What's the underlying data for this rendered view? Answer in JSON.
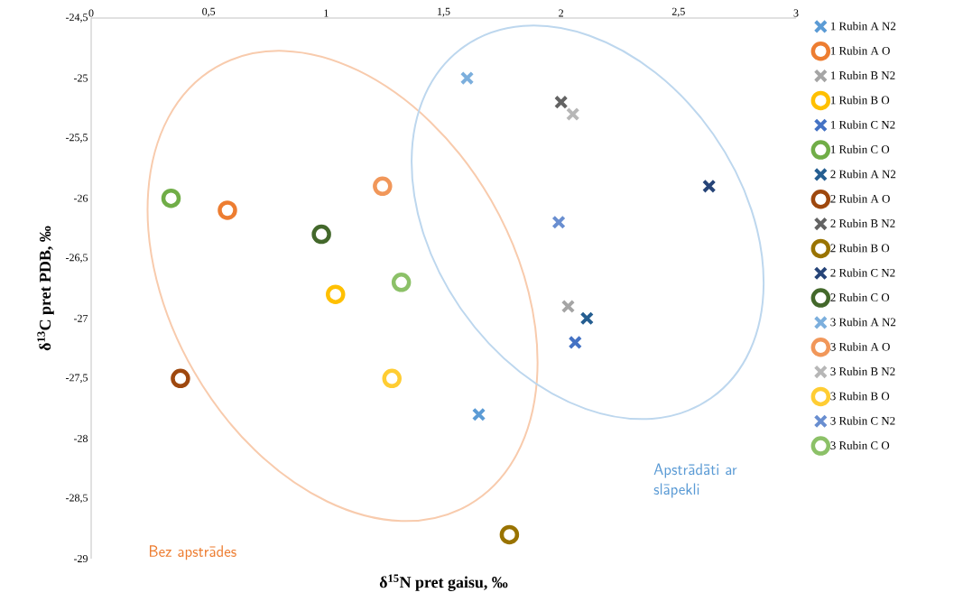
{
  "chart_data": {
    "type": "scatter",
    "xlabel": "δ$^{15}$N pret gaisu, ‰",
    "ylabel": "δ$^{13}$C pret PDB, ‰",
    "xlim": [
      0,
      3
    ],
    "ylim": [
      -29,
      -24.5
    ],
    "xticks": [
      0,
      {
        "value": 0.5,
        "label": "0,5"
      },
      1,
      {
        "value": 1.5,
        "label": "1,5"
      },
      2,
      {
        "value": 2.5,
        "label": "2,5"
      },
      3
    ],
    "yticks": [
      {
        "value": -29,
        "label": "-29"
      },
      {
        "value": -28.5,
        "label": "-28,5"
      },
      {
        "value": -28,
        "label": "-28"
      },
      {
        "value": -27.5,
        "label": "-27,5"
      },
      {
        "value": -27,
        "label": "-27"
      },
      {
        "value": -26.5,
        "label": "-26,5"
      },
      {
        "value": -26,
        "label": "-26"
      },
      {
        "value": -25.5,
        "label": "-25,5"
      },
      {
        "value": -25,
        "label": "-25"
      },
      {
        "value": -24.5,
        "label": "-24,5"
      }
    ],
    "grid": false,
    "legend": "right",
    "annotations": [
      "Bez apstrādes",
      "Apstrādāti ar slāpekli"
    ],
    "series": [
      {
        "name": "1 Rubin A N2",
        "color": "#5b9bd5",
        "marker": "cross",
        "x": [
          1.65
        ],
        "values": [
          -27.8
        ]
      },
      {
        "name": "1 Rubin A O",
        "color": "#ed7d31",
        "marker": "circle",
        "x": [
          0.58
        ],
        "values": [
          -26.1
        ]
      },
      {
        "name": "1 Rubin B N2",
        "color": "#a5a5a5",
        "marker": "cross",
        "x": [
          2.03
        ],
        "values": [
          -26.9
        ]
      },
      {
        "name": "1 Rubin B O",
        "color": "#ffc000",
        "marker": "circle",
        "x": [
          1.04
        ],
        "values": [
          -26.8
        ]
      },
      {
        "name": "1 Rubin C N2",
        "color": "#4472c4",
        "marker": "cross",
        "x": [
          2.06
        ],
        "values": [
          -27.2
        ]
      },
      {
        "name": "1 Rubin C O",
        "color": "#70ad47",
        "marker": "circle",
        "x": [
          0.34
        ],
        "values": [
          -26.0
        ]
      },
      {
        "name": "2 Rubin A N2",
        "color": "#255e91",
        "marker": "cross",
        "x": [
          2.11
        ],
        "values": [
          -27.0
        ]
      },
      {
        "name": "2 Rubin A O",
        "color": "#9e480e",
        "marker": "circle",
        "x": [
          0.38
        ],
        "values": [
          -27.5
        ]
      },
      {
        "name": "2 Rubin B N2",
        "color": "#636363",
        "marker": "cross",
        "x": [
          2.0
        ],
        "values": [
          -25.2
        ]
      },
      {
        "name": "2 Rubin B O",
        "color": "#997300",
        "marker": "circle",
        "x": [
          1.78
        ],
        "values": [
          -28.8
        ]
      },
      {
        "name": "2 Rubin C N2",
        "color": "#264478",
        "marker": "cross",
        "x": [
          2.63
        ],
        "values": [
          -25.9
        ]
      },
      {
        "name": "2 Rubin C O",
        "color": "#43682b",
        "marker": "circle",
        "x": [
          0.98
        ],
        "values": [
          -26.3
        ]
      },
      {
        "name": "3 Rubin A N2",
        "color": "#7cafdd",
        "marker": "cross",
        "x": [
          1.6
        ],
        "values": [
          -25.0
        ]
      },
      {
        "name": "3 Rubin A O",
        "color": "#f1975a",
        "marker": "circle",
        "x": [
          1.24
        ],
        "values": [
          -25.9
        ]
      },
      {
        "name": "3 Rubin B N2",
        "color": "#b7b7b7",
        "marker": "cross",
        "x": [
          2.05
        ],
        "values": [
          -25.3
        ]
      },
      {
        "name": "3 Rubin B O",
        "color": "#ffcd33",
        "marker": "circle",
        "x": [
          1.28
        ],
        "values": [
          -27.5
        ]
      },
      {
        "name": "3 Rubin C N2",
        "color": "#698ed0",
        "marker": "cross",
        "x": [
          1.99
        ],
        "values": [
          -26.2
        ]
      },
      {
        "name": "3 Rubin C O",
        "color": "#8cc168",
        "marker": "circle",
        "x": [
          1.32
        ],
        "values": [
          -26.7
        ]
      }
    ]
  }
}
